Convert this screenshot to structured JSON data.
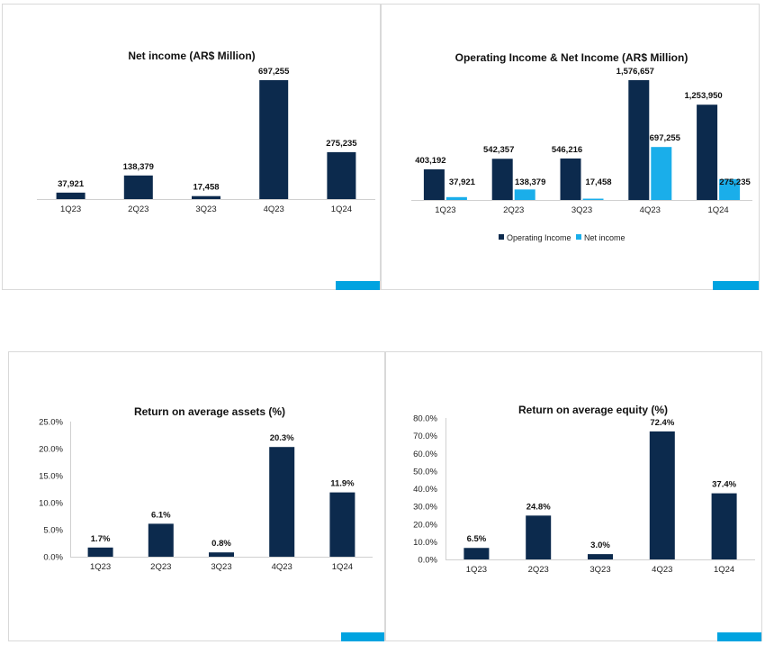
{
  "colors": {
    "primary": "#0c2a4d",
    "secondary": "#1aaeea",
    "accent_tab": "#00a3e0"
  },
  "chart_data": [
    {
      "type": "bar",
      "title": "Net income (AR$ Million)",
      "categories": [
        "1Q23",
        "2Q23",
        "3Q23",
        "4Q23",
        "1Q24"
      ],
      "values": [
        37921,
        138379,
        17458,
        697255,
        275235
      ],
      "data_labels": [
        "37,921",
        "138,379",
        "17,458",
        "697,255",
        "275,235"
      ],
      "ylim": [
        0,
        697255
      ],
      "grid": false,
      "legend": false
    },
    {
      "type": "bar",
      "title": "Operating Income & Net Income (AR$ Million)",
      "categories": [
        "1Q23",
        "2Q23",
        "3Q23",
        "4Q23",
        "1Q24"
      ],
      "series": [
        {
          "name": "Operating Income",
          "values": [
            403192,
            542357,
            546216,
            1576657,
            1253950
          ],
          "data_labels": [
            "403,192",
            "542,357",
            "546,216",
            "1,576,657",
            "1,253,950"
          ]
        },
        {
          "name": "Net income",
          "values": [
            37921,
            138379,
            17458,
            697255,
            275235
          ],
          "data_labels": [
            "37,921",
            "138,379",
            "17,458",
            "697,255",
            "275,235"
          ]
        }
      ],
      "ylim": [
        0,
        1576657
      ],
      "grid": false,
      "legend": "bottom"
    },
    {
      "type": "bar",
      "title": "Return on average assets (%)",
      "categories": [
        "1Q23",
        "2Q23",
        "3Q23",
        "4Q23",
        "1Q24"
      ],
      "values": [
        1.7,
        6.1,
        0.8,
        20.3,
        11.9
      ],
      "data_labels": [
        "1.7%",
        "6.1%",
        "0.8%",
        "20.3%",
        "11.9%"
      ],
      "yticks": [
        "0.0%",
        "5.0%",
        "10.0%",
        "15.0%",
        "20.0%",
        "25.0%"
      ],
      "ylim": [
        0,
        25
      ],
      "grid": false,
      "legend": false
    },
    {
      "type": "bar",
      "title": "Return on average equity (%)",
      "categories": [
        "1Q23",
        "2Q23",
        "3Q23",
        "4Q23",
        "1Q24"
      ],
      "values": [
        6.5,
        24.8,
        3.0,
        72.4,
        37.4
      ],
      "data_labels": [
        "6.5%",
        "24.8%",
        "3.0%",
        "72.4%",
        "37.4%"
      ],
      "yticks": [
        "0.0%",
        "10.0%",
        "20.0%",
        "30.0%",
        "40.0%",
        "50.0%",
        "60.0%",
        "70.0%",
        "80.0%"
      ],
      "ylim": [
        0,
        80
      ],
      "grid": false,
      "legend": false
    }
  ]
}
